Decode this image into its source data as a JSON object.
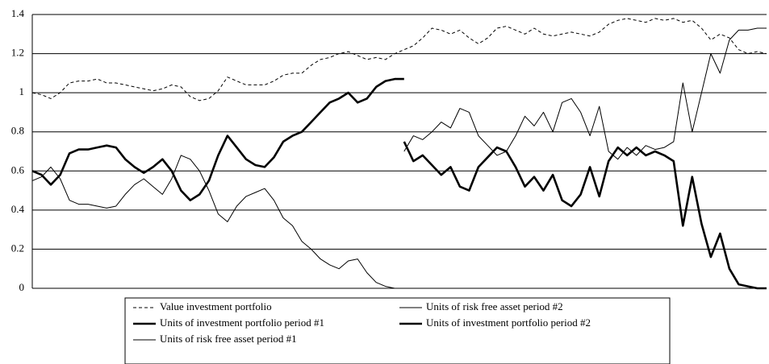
{
  "chart_data": {
    "type": "line",
    "ylim": [
      0,
      1.4
    ],
    "yticks": [
      0,
      0.2,
      0.4,
      0.6,
      0.8,
      1,
      1.2,
      1.4
    ],
    "grid": true,
    "series": [
      {
        "name": "Value investment portfolio",
        "color": "#000000",
        "dashed": true,
        "line_width": 1,
        "values": [
          1.0,
          0.99,
          0.97,
          1.0,
          1.05,
          1.06,
          1.06,
          1.07,
          1.05,
          1.05,
          1.04,
          1.03,
          1.02,
          1.01,
          1.02,
          1.04,
          1.03,
          0.98,
          0.96,
          0.97,
          1.01,
          1.08,
          1.06,
          1.04,
          1.04,
          1.04,
          1.06,
          1.09,
          1.1,
          1.1,
          1.14,
          1.17,
          1.18,
          1.2,
          1.21,
          1.19,
          1.17,
          1.18,
          1.17,
          1.2,
          1.22,
          1.24,
          1.28,
          1.33,
          1.32,
          1.3,
          1.32,
          1.28,
          1.25,
          1.28,
          1.33,
          1.34,
          1.32,
          1.3,
          1.33,
          1.3,
          1.29,
          1.3,
          1.31,
          1.3,
          1.29,
          1.31,
          1.35,
          1.37,
          1.38,
          1.37,
          1.36,
          1.38,
          1.37,
          1.38,
          1.36,
          1.37,
          1.33,
          1.27,
          1.3,
          1.28,
          1.22,
          1.2,
          1.21,
          1.2
        ]
      },
      {
        "name": "Units of risk free asset period #2",
        "color": "#000000",
        "dashed": false,
        "line_width": 1,
        "values": [
          null,
          null,
          null,
          null,
          null,
          null,
          null,
          null,
          null,
          null,
          null,
          null,
          null,
          null,
          null,
          null,
          null,
          null,
          null,
          null,
          null,
          null,
          null,
          null,
          null,
          null,
          null,
          null,
          null,
          null,
          null,
          null,
          null,
          null,
          null,
          null,
          null,
          null,
          null,
          null,
          0.7,
          0.78,
          0.76,
          0.8,
          0.85,
          0.82,
          0.92,
          0.9,
          0.78,
          0.73,
          0.68,
          0.7,
          0.78,
          0.88,
          0.83,
          0.9,
          0.8,
          0.95,
          0.97,
          0.9,
          0.78,
          0.93,
          0.7,
          0.66,
          0.72,
          0.68,
          0.73,
          0.71,
          0.72,
          0.75,
          1.05,
          0.8,
          1.0,
          1.2,
          1.1,
          1.27,
          1.32,
          1.32,
          1.33,
          1.33
        ]
      },
      {
        "name": "Units of investment portfolio period #1",
        "color": "#000000",
        "dashed": false,
        "line_width": 2.6,
        "values": [
          0.6,
          0.58,
          0.53,
          0.58,
          0.69,
          0.71,
          0.71,
          0.72,
          0.73,
          0.72,
          0.66,
          0.62,
          0.59,
          0.62,
          0.66,
          0.6,
          0.5,
          0.45,
          0.48,
          0.55,
          0.68,
          0.78,
          0.72,
          0.66,
          0.63,
          0.62,
          0.67,
          0.75,
          0.78,
          0.8,
          0.85,
          0.9,
          0.95,
          0.97,
          1.0,
          0.95,
          0.97,
          1.03,
          1.06,
          1.07,
          1.07,
          null,
          null,
          null,
          null,
          null,
          null,
          null,
          null,
          null,
          null,
          null,
          null,
          null,
          null,
          null,
          null,
          null,
          null,
          null,
          null,
          null,
          null,
          null,
          null,
          null,
          null,
          null,
          null,
          null,
          null,
          null,
          null,
          null,
          null,
          null,
          null,
          null,
          null,
          null
        ]
      },
      {
        "name": "Units of investment portfolio period #2",
        "color": "#000000",
        "dashed": false,
        "line_width": 2.6,
        "values": [
          null,
          null,
          null,
          null,
          null,
          null,
          null,
          null,
          null,
          null,
          null,
          null,
          null,
          null,
          null,
          null,
          null,
          null,
          null,
          null,
          null,
          null,
          null,
          null,
          null,
          null,
          null,
          null,
          null,
          null,
          null,
          null,
          null,
          null,
          null,
          null,
          null,
          null,
          null,
          null,
          0.75,
          0.65,
          0.68,
          0.63,
          0.58,
          0.62,
          0.52,
          0.5,
          0.62,
          0.67,
          0.72,
          0.7,
          0.62,
          0.52,
          0.57,
          0.5,
          0.58,
          0.45,
          0.42,
          0.48,
          0.62,
          0.47,
          0.65,
          0.72,
          0.68,
          0.72,
          0.68,
          0.7,
          0.68,
          0.65,
          0.32,
          0.57,
          0.33,
          0.16,
          0.28,
          0.1,
          0.02,
          0.01,
          0,
          0
        ]
      },
      {
        "name": "Units of risk free asset period #1",
        "color": "#000000",
        "dashed": false,
        "line_width": 1,
        "values": [
          0.55,
          0.57,
          0.62,
          0.56,
          0.45,
          0.43,
          0.43,
          0.42,
          0.41,
          0.42,
          0.48,
          0.53,
          0.56,
          0.52,
          0.48,
          0.56,
          0.68,
          0.66,
          0.6,
          0.5,
          0.38,
          0.34,
          0.42,
          0.47,
          0.49,
          0.51,
          0.45,
          0.36,
          0.32,
          0.24,
          0.2,
          0.15,
          0.12,
          0.1,
          0.14,
          0.15,
          0.08,
          0.03,
          0.01,
          0,
          0,
          null,
          null,
          null,
          null,
          null,
          null,
          null,
          null,
          null,
          null,
          null,
          null,
          null,
          null,
          null,
          null,
          null,
          null,
          null,
          null,
          null,
          null,
          null,
          null,
          null,
          null,
          null,
          null,
          null,
          null,
          null,
          null,
          null,
          null,
          null,
          null,
          null,
          null,
          null
        ]
      }
    ]
  }
}
